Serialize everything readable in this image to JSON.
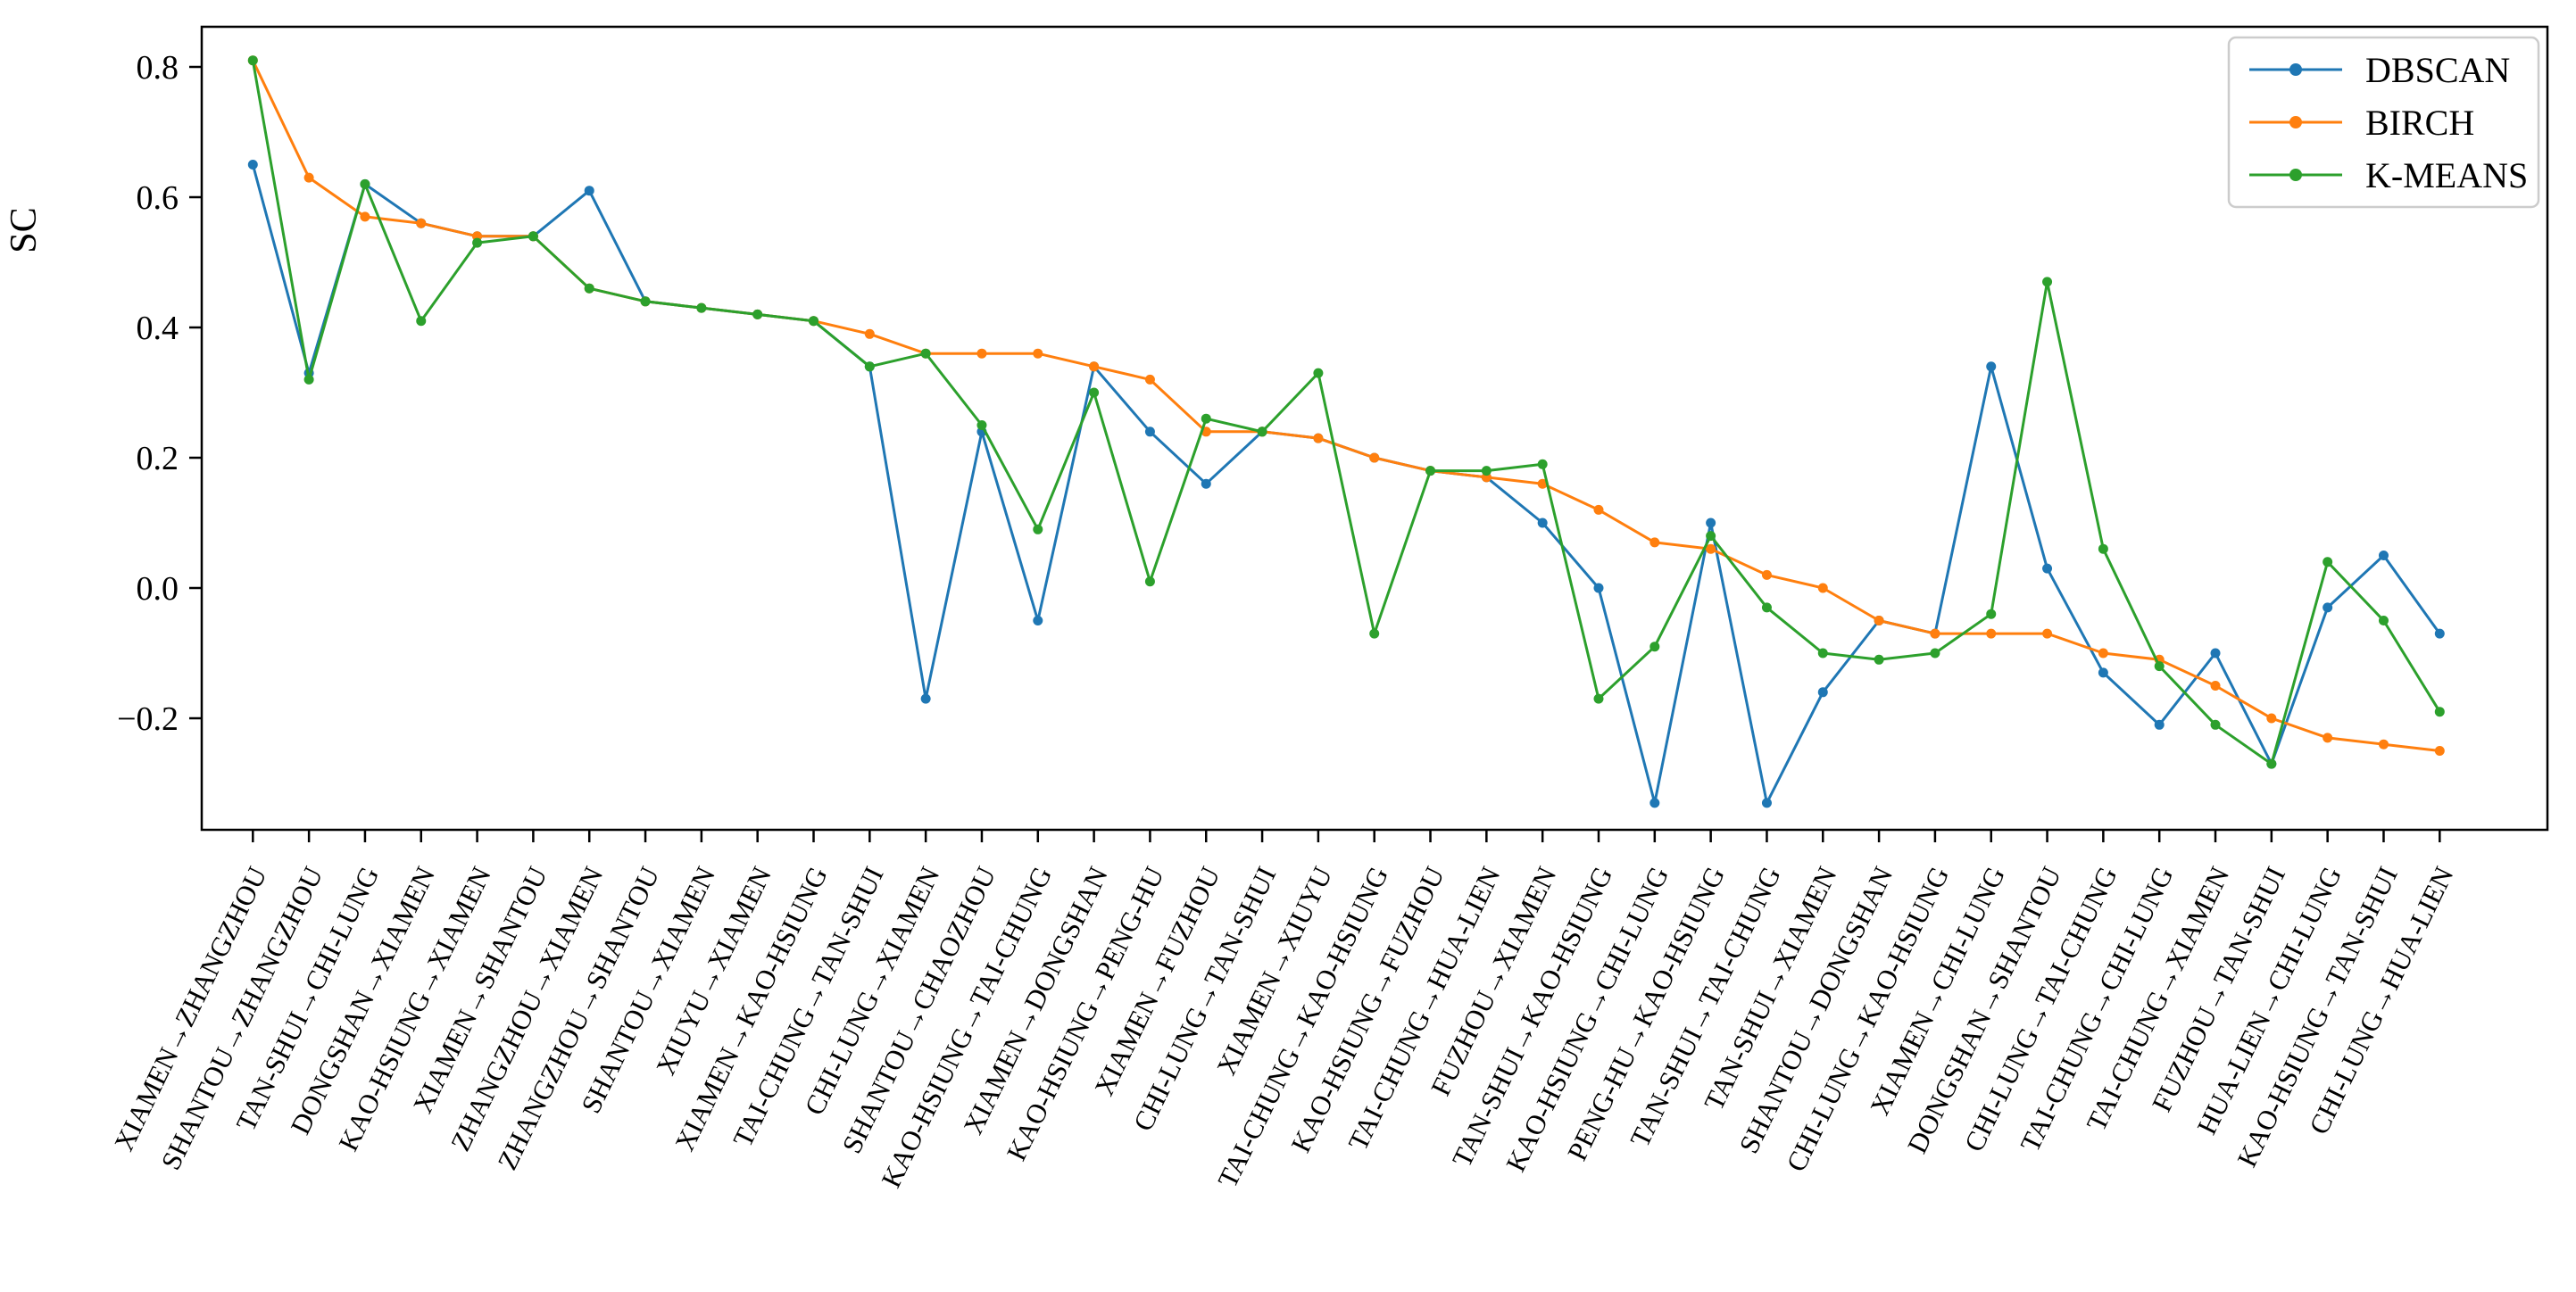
{
  "chart_data": {
    "type": "line",
    "title": "",
    "xlabel": "",
    "ylabel": "SC",
    "ylim": [
      -0.37,
      0.86
    ],
    "yticks": [
      0.8,
      0.6,
      0.4,
      0.2,
      0.0,
      -0.2
    ],
    "grid": false,
    "legend_position": "top-right",
    "marker": "circle-dot",
    "categories": [
      "XIAMEN→ZHANGZHOU",
      "SHANTOU→ZHANGZHOU",
      "TAN-SHUI→CHI-LUNG",
      "DONGSHAN→XIAMEN",
      "KAO-HSIUNG→XIAMEN",
      "XIAMEN→SHANTOU",
      "ZHANGZHOU→XIAMEN",
      "ZHANGZHOU→SHANTOU",
      "SHANTOU→XIAMEN",
      "XIUYU→XIAMEN",
      "XIAMEN→KAO-HSIUNG",
      "TAI-CHUNG→TAN-SHUI",
      "CHI-LUNG→XIAMEN",
      "SHANTOU→CHAOZHOU",
      "KAO-HSIUNG→TAI-CHUNG",
      "XIAMEN→DONGSHAN",
      "KAO-HSIUNG→PENG-HU",
      "XIAMEN→FUZHOU",
      "CHI-LUNG→TAN-SHUI",
      "XIAMEN→XIUYU",
      "TAI-CHUNG→KAO-HSIUNG",
      "KAO-HSIUNG→FUZHOU",
      "TAI-CHUNG→HUA-LIEN",
      "FUZHOU→XIAMEN",
      "TAN-SHUI→KAO-HSIUNG",
      "KAO-HSIUNG→CHI-LUNG",
      "PENG-HU→KAO-HSIUNG",
      "TAN-SHUI→TAI-CHUNG",
      "TAN-SHUI→XIAMEN",
      "SHANTOU→DONGSHAN",
      "CHI-LUNG→KAO-HSIUNG",
      "XIAMEN→CHI-LUNG",
      "DONGSHAN→SHANTOU",
      "CHI-LUNG→TAI-CHUNG",
      "TAI-CHUNG→CHI-LUNG",
      "TAI-CHUNG→XIAMEN",
      "FUZHOU→TAN-SHUI",
      "HUA-LIEN→CHI-LUNG",
      "KAO-HSIUNG→TAN-SHUI",
      "CHI-LUNG→HUA-LIEN"
    ],
    "series": [
      {
        "name": "DBSCAN",
        "color": "#1f77b4",
        "values": [
          0.65,
          0.33,
          0.62,
          0.56,
          0.54,
          0.54,
          0.61,
          0.44,
          0.43,
          0.42,
          0.41,
          0.34,
          -0.17,
          0.24,
          -0.05,
          0.34,
          0.24,
          0.16,
          0.24,
          0.23,
          0.2,
          0.18,
          0.17,
          0.1,
          0.0,
          -0.33,
          0.1,
          -0.33,
          -0.16,
          -0.05,
          -0.07,
          0.34,
          0.03,
          -0.13,
          -0.21,
          -0.1,
          -0.27,
          -0.03,
          0.05,
          -0.07
        ]
      },
      {
        "name": "BIRCH",
        "color": "#ff7f0e",
        "values": [
          0.81,
          0.63,
          0.57,
          0.56,
          0.54,
          0.54,
          0.46,
          0.44,
          0.43,
          0.42,
          0.41,
          0.39,
          0.36,
          0.36,
          0.36,
          0.34,
          0.32,
          0.24,
          0.24,
          0.23,
          0.2,
          0.18,
          0.17,
          0.16,
          0.12,
          0.07,
          0.06,
          0.02,
          0.0,
          -0.05,
          -0.07,
          -0.07,
          -0.07,
          -0.1,
          -0.11,
          -0.15,
          -0.2,
          -0.23,
          -0.24,
          -0.25
        ]
      },
      {
        "name": "K-MEANS",
        "color": "#2ca02c",
        "values": [
          0.81,
          0.32,
          0.62,
          0.41,
          0.53,
          0.54,
          0.46,
          0.44,
          0.43,
          0.42,
          0.41,
          0.34,
          0.36,
          0.25,
          0.09,
          0.3,
          0.01,
          0.26,
          0.24,
          0.33,
          -0.07,
          0.18,
          0.18,
          0.19,
          -0.17,
          -0.09,
          0.08,
          -0.03,
          -0.1,
          -0.11,
          -0.1,
          -0.04,
          0.47,
          0.06,
          -0.12,
          -0.21,
          -0.27,
          0.04,
          -0.05,
          -0.19
        ]
      }
    ]
  }
}
